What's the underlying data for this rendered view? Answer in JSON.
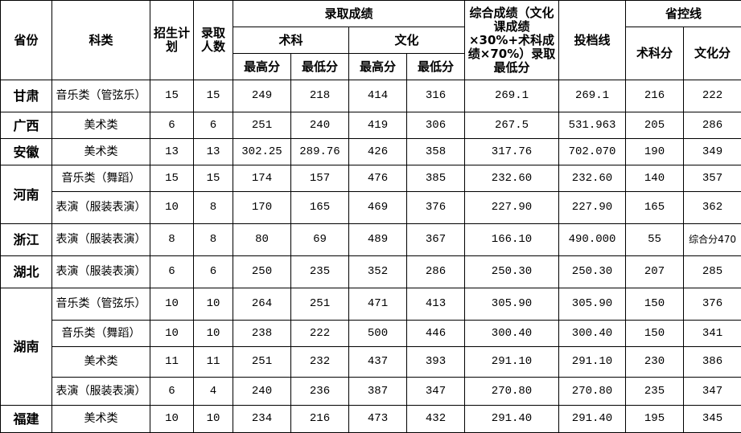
{
  "header": {
    "province": "省份",
    "category": "科类",
    "plan": "招生计划",
    "admitted": "录取人数",
    "scores": "录取成绩",
    "art": "术科",
    "culture": "文化",
    "max": "最高分",
    "min": "最低分",
    "composite": "综合成绩（文化课成绩×30%+术科成绩×70%）录取最低分",
    "filing_line": "投档线",
    "control_line": "省控线",
    "art_score": "术科分",
    "culture_score": "文化分"
  },
  "rows": [
    {
      "province": "甘肃",
      "category": "音乐类（管弦乐）",
      "plan": "15",
      "admitted": "15",
      "art_max": "249",
      "art_min": "218",
      "cul_max": "414",
      "cul_min": "316",
      "composite": "269.1",
      "filing": "269.1",
      "ctrl_art": "216",
      "ctrl_cul": "222"
    },
    {
      "province": "广西",
      "category": "美术类",
      "plan": "6",
      "admitted": "6",
      "art_max": "251",
      "art_min": "240",
      "cul_max": "419",
      "cul_min": "306",
      "composite": "267.5",
      "filing": "531.963",
      "ctrl_art": "205",
      "ctrl_cul": "286"
    },
    {
      "province": "安徽",
      "category": "美术类",
      "plan": "13",
      "admitted": "13",
      "art_max": "302.25",
      "art_min": "289.76",
      "cul_max": "426",
      "cul_min": "358",
      "composite": "317.76",
      "filing": "702.070",
      "ctrl_art": "190",
      "ctrl_cul": "349"
    },
    {
      "province": "河南",
      "category": "音乐类（舞蹈）",
      "plan": "15",
      "admitted": "15",
      "art_max": "174",
      "art_min": "157",
      "cul_max": "476",
      "cul_min": "385",
      "composite": "232.60",
      "filing": "232.60",
      "ctrl_art": "140",
      "ctrl_cul": "357"
    },
    {
      "province": "",
      "category": "表演（服装表演）",
      "plan": "10",
      "admitted": "8",
      "art_max": "170",
      "art_min": "165",
      "cul_max": "469",
      "cul_min": "376",
      "composite": "227.90",
      "filing": "227.90",
      "ctrl_art": "165",
      "ctrl_cul": "362"
    },
    {
      "province": "浙江",
      "category": "表演（服装表演）",
      "plan": "8",
      "admitted": "8",
      "art_max": "80",
      "art_min": "69",
      "cul_max": "489",
      "cul_min": "367",
      "composite": "166.10",
      "filing": "490.000",
      "ctrl_art": "55",
      "ctrl_cul": "综合分470"
    },
    {
      "province": "湖北",
      "category": "表演（服装表演）",
      "plan": "6",
      "admitted": "6",
      "art_max": "250",
      "art_min": "235",
      "cul_max": "352",
      "cul_min": "286",
      "composite": "250.30",
      "filing": "250.30",
      "ctrl_art": "207",
      "ctrl_cul": "285"
    },
    {
      "province": "湖南",
      "category": "音乐类（管弦乐）",
      "plan": "10",
      "admitted": "10",
      "art_max": "264",
      "art_min": "251",
      "cul_max": "471",
      "cul_min": "413",
      "composite": "305.90",
      "filing": "305.90",
      "ctrl_art": "150",
      "ctrl_cul": "376"
    },
    {
      "province": "",
      "category": "音乐类（舞蹈）",
      "plan": "10",
      "admitted": "10",
      "art_max": "238",
      "art_min": "222",
      "cul_max": "500",
      "cul_min": "446",
      "composite": "300.40",
      "filing": "300.40",
      "ctrl_art": "150",
      "ctrl_cul": "341"
    },
    {
      "province": "",
      "category": "美术类",
      "plan": "11",
      "admitted": "11",
      "art_max": "251",
      "art_min": "232",
      "cul_max": "437",
      "cul_min": "393",
      "composite": "291.10",
      "filing": "291.10",
      "ctrl_art": "230",
      "ctrl_cul": "386"
    },
    {
      "province": "",
      "category": "表演（服装表演）",
      "plan": "6",
      "admitted": "4",
      "art_max": "240",
      "art_min": "236",
      "cul_max": "387",
      "cul_min": "347",
      "composite": "270.80",
      "filing": "270.80",
      "ctrl_art": "235",
      "ctrl_cul": "347"
    },
    {
      "province": "福建",
      "category": "美术类",
      "plan": "10",
      "admitted": "10",
      "art_max": "234",
      "art_min": "216",
      "cul_max": "473",
      "cul_min": "432",
      "composite": "291.40",
      "filing": "291.40",
      "ctrl_art": "195",
      "ctrl_cul": "345"
    }
  ],
  "province_spans": [
    1,
    1,
    1,
    2,
    0,
    1,
    1,
    4,
    0,
    0,
    0,
    1
  ],
  "row_heights": [
    40,
    33,
    33,
    33,
    40,
    40,
    40,
    40,
    33,
    38,
    35,
    34
  ]
}
